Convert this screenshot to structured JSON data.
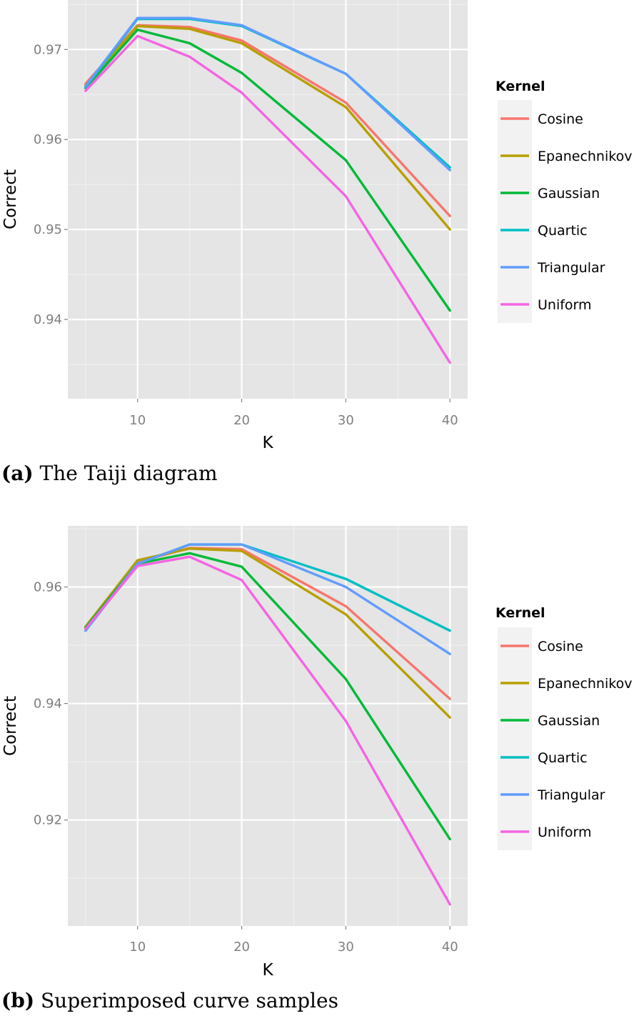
{
  "chart_data": [
    {
      "type": "line",
      "caption_tag": "(a)",
      "caption_text": "The Taiji diagram",
      "xlabel": "K",
      "ylabel": "Correct",
      "legend_title": "Kernel",
      "legend_position": "right",
      "grid": true,
      "xlim": [
        3.3,
        41.7
      ],
      "ylim": [
        0.9312,
        0.9755
      ],
      "xticks": [
        10,
        20,
        30,
        40
      ],
      "yticks": [
        0.94,
        0.95,
        0.96,
        0.97
      ],
      "ytick_labels": [
        "0.94",
        "0.95",
        "0.96",
        "0.97"
      ],
      "x": [
        5,
        10,
        15,
        20,
        30,
        40
      ],
      "series": [
        {
          "name": "Cosine",
          "color": "#F8766D",
          "values": [
            0.9662,
            0.9727,
            0.9725,
            0.971,
            0.9641,
            0.9515
          ]
        },
        {
          "name": "Epanechnikov",
          "color": "#B79F00",
          "values": [
            0.966,
            0.9726,
            0.9723,
            0.9707,
            0.9636,
            0.95
          ]
        },
        {
          "name": "Gaussian",
          "color": "#00BA38",
          "values": [
            0.9657,
            0.9722,
            0.9707,
            0.9674,
            0.9577,
            0.941
          ]
        },
        {
          "name": "Quartic",
          "color": "#00BFC4",
          "values": [
            0.9658,
            0.9734,
            0.9734,
            0.9726,
            0.9673,
            0.9569
          ]
        },
        {
          "name": "Triangular",
          "color": "#619CFF",
          "values": [
            0.9659,
            0.9735,
            0.9735,
            0.9727,
            0.9673,
            0.9566
          ]
        },
        {
          "name": "Uniform",
          "color": "#F564E3",
          "values": [
            0.9654,
            0.9715,
            0.9692,
            0.9652,
            0.9537,
            0.9352
          ]
        }
      ]
    },
    {
      "type": "line",
      "caption_tag": "(b)",
      "caption_text": "Superimposed curve samples",
      "xlabel": "K",
      "ylabel": "Correct",
      "legend_title": "Kernel",
      "legend_position": "right",
      "grid": true,
      "xlim": [
        3.3,
        41.7
      ],
      "ylim": [
        0.9018,
        0.9705
      ],
      "xticks": [
        10,
        20,
        30,
        40
      ],
      "yticks": [
        0.92,
        0.94,
        0.96
      ],
      "ytick_labels": [
        "0.92",
        "0.94",
        "0.96"
      ],
      "x": [
        5,
        10,
        15,
        20,
        30,
        40
      ],
      "series": [
        {
          "name": "Cosine",
          "color": "#F8766D",
          "values": [
            0.953,
            0.9643,
            0.9667,
            0.9665,
            0.9567,
            0.9408
          ]
        },
        {
          "name": "Epanechnikov",
          "color": "#B79F00",
          "values": [
            0.9532,
            0.9646,
            0.9666,
            0.9662,
            0.9553,
            0.9376
          ]
        },
        {
          "name": "Gaussian",
          "color": "#00BA38",
          "values": [
            0.953,
            0.964,
            0.9658,
            0.9635,
            0.9442,
            0.9167
          ]
        },
        {
          "name": "Quartic",
          "color": "#00BFC4",
          "values": [
            0.9525,
            0.964,
            0.9673,
            0.9673,
            0.9614,
            0.9525
          ]
        },
        {
          "name": "Triangular",
          "color": "#619CFF",
          "values": [
            0.9525,
            0.964,
            0.9673,
            0.9673,
            0.96,
            0.9485
          ]
        },
        {
          "name": "Uniform",
          "color": "#F564E3",
          "values": [
            0.9528,
            0.9636,
            0.9652,
            0.9612,
            0.937,
            0.9055
          ]
        }
      ]
    }
  ]
}
